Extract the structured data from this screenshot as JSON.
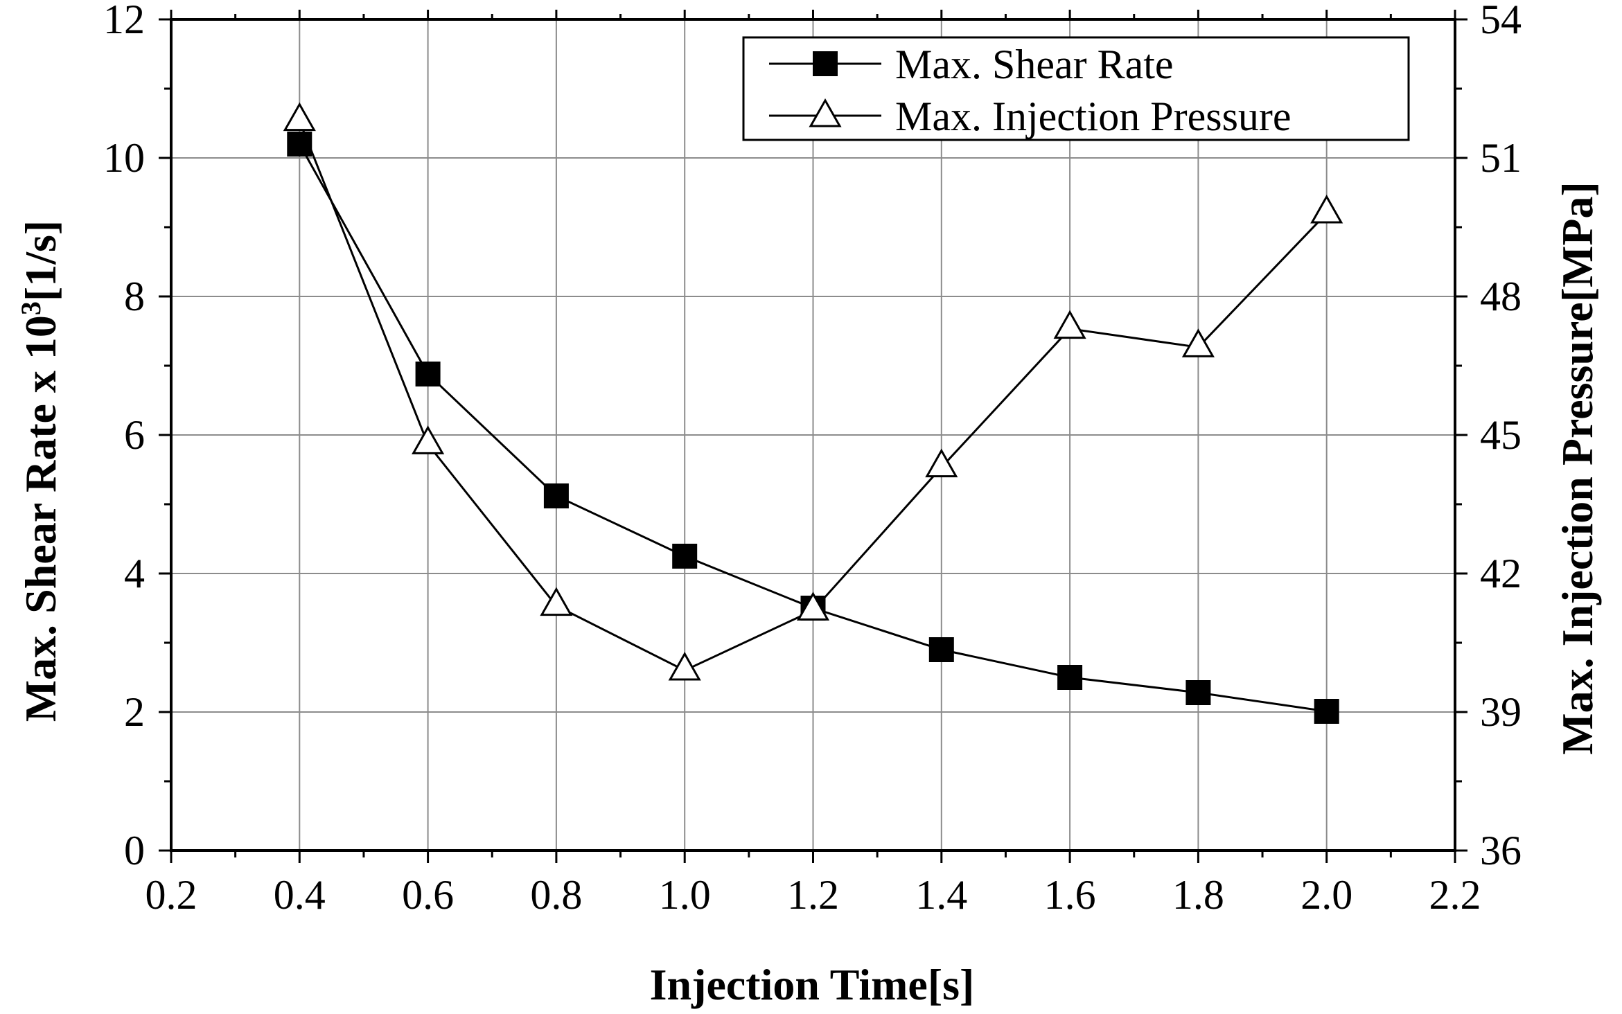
{
  "chart_data": {
    "type": "line",
    "title": "",
    "xlabel": "Injection Time[s]",
    "ylabel_left": {
      "main": "Max. Shear Rate x 10",
      "sup": "3",
      "unit": "[1/s]"
    },
    "ylabel_right": "Max. Injection Pressure[MPa]",
    "xlim": [
      0.2,
      2.2
    ],
    "ylim_left": [
      0,
      12
    ],
    "ylim_right": [
      36,
      54
    ],
    "x_ticks": [
      "0.2",
      "0.4",
      "0.6",
      "0.8",
      "1.0",
      "1.2",
      "1.4",
      "1.6",
      "1.8",
      "2.0",
      "2.2"
    ],
    "y_left_ticks": [
      "0",
      "2",
      "4",
      "6",
      "8",
      "10",
      "12"
    ],
    "y_right_ticks": [
      "36",
      "39",
      "42",
      "45",
      "48",
      "51",
      "54"
    ],
    "grid": true,
    "legend_position": "top-right",
    "series": [
      {
        "name": "Max. Shear Rate",
        "axis": "left",
        "marker": "filled-square",
        "x": [
          0.4,
          0.6,
          0.8,
          1.0,
          1.2,
          1.4,
          1.6,
          1.8,
          2.0
        ],
        "values": [
          10.2,
          6.88,
          5.12,
          4.25,
          3.5,
          2.9,
          2.5,
          2.28,
          2.01
        ]
      },
      {
        "name": "Max. Injection Pressure",
        "axis": "right",
        "marker": "open-triangle",
        "x": [
          0.4,
          0.6,
          0.8,
          1.0,
          1.2,
          1.4,
          1.6,
          1.8,
          2.0
        ],
        "values": [
          51.8,
          44.8,
          41.3,
          39.9,
          41.2,
          44.3,
          47.3,
          46.9,
          49.8
        ]
      }
    ]
  },
  "colors": {
    "line": "#000000",
    "grid": "#8c8c8c",
    "background": "#ffffff"
  }
}
